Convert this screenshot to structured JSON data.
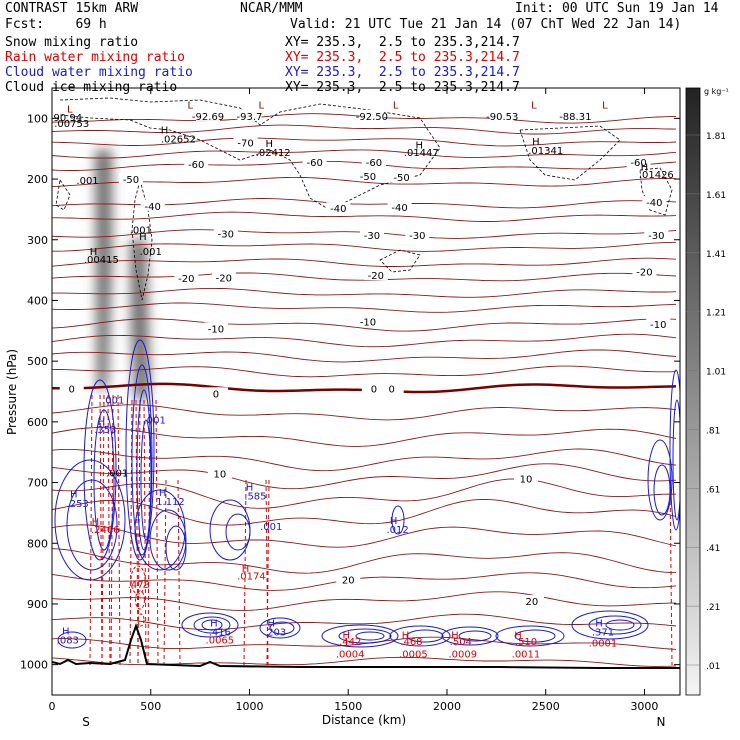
{
  "header": {
    "line1_left": "CONTRAST 15km ARW",
    "line1_center": "NCAR/MMM",
    "line1_right": "Init: 00 UTC Sun 19 Jan 14",
    "line2_left": "Fcst:    69 h",
    "line2_right": "Valid: 21 UTC Tue 21 Jan 14 (07 ChT Wed 22 Jan 14)",
    "fields": [
      {
        "name": "Snow mixing ratio",
        "xy": "XY= 235.3,  2.5 to 235.3,214.7",
        "color": "#000000"
      },
      {
        "name": "Rain water mixing ratio",
        "xy": "XY= 235.3,  2.5 to 235.3,214.7",
        "color": "#e00000"
      },
      {
        "name": "Cloud water mixing ratio",
        "xy": "XY= 235.3,  2.5 to 235.3,214.7",
        "color": "#1a1ad0"
      },
      {
        "name": "Cloud ice mixing ratio",
        "xy": "XY= 235.3,  2.5 to 235.3,214.7",
        "color": "#000000"
      }
    ]
  },
  "chart_data": {
    "type": "contour cross-section",
    "xlabel": "Distance (km)",
    "ylabel": "Pressure (hPa)",
    "xlim": [
      0,
      3180
    ],
    "ylim": [
      1050,
      50
    ],
    "x_ticks": [
      "0",
      "500",
      "1000",
      "1500",
      "2000",
      "2500",
      "3000"
    ],
    "x_tick_values": [
      0,
      500,
      1000,
      1500,
      2000,
      2500,
      3000
    ],
    "y_ticks": [
      "100",
      "200",
      "300",
      "400",
      "500",
      "600",
      "700",
      "800",
      "900",
      "1000"
    ],
    "y_tick_values": [
      100,
      200,
      300,
      400,
      500,
      600,
      700,
      800,
      900,
      1000
    ],
    "end_labels": {
      "left": "S",
      "right": "N"
    },
    "colorbar": {
      "unit": "g kg⁻¹",
      "labels": [
        "1.81",
        "1.61",
        "1.41",
        "1.21",
        "1.01",
        ".81",
        ".61",
        ".41",
        ".21",
        ".01"
      ],
      "values": [
        1.81,
        1.61,
        1.41,
        1.21,
        1.01,
        0.81,
        0.61,
        0.41,
        0.21,
        0.01
      ]
    },
    "temperature_labels": [
      {
        "text": "-92.69",
        "x": 790,
        "p": 96
      },
      {
        "text": "-93.7",
        "x": 1000,
        "p": 96
      },
      {
        "text": "-92.50",
        "x": 1620,
        "p": 96
      },
      {
        "text": "-90.53",
        "x": 2280,
        "p": 96
      },
      {
        "text": "-88.31",
        "x": 2650,
        "p": 96
      },
      {
        "text": "-70",
        "x": 980,
        "p": 140
      },
      {
        "text": "-60",
        "x": 730,
        "p": 175
      },
      {
        "text": "-60",
        "x": 1330,
        "p": 172
      },
      {
        "text": "-60",
        "x": 1630,
        "p": 172
      },
      {
        "text": "-60",
        "x": 2970,
        "p": 172
      },
      {
        "text": "-50",
        "x": 400,
        "p": 200
      },
      {
        "text": "-50",
        "x": 1600,
        "p": 195
      },
      {
        "text": "-50",
        "x": 1770,
        "p": 197
      },
      {
        "text": "-40",
        "x": 510,
        "p": 244
      },
      {
        "text": "-40",
        "x": 1450,
        "p": 248
      },
      {
        "text": "-40",
        "x": 1760,
        "p": 246
      },
      {
        "text": "-40",
        "x": 3050,
        "p": 238
      },
      {
        "text": "-30",
        "x": 880,
        "p": 290
      },
      {
        "text": "-30",
        "x": 1620,
        "p": 292
      },
      {
        "text": "-30",
        "x": 1850,
        "p": 292
      },
      {
        "text": "-30",
        "x": 3060,
        "p": 292
      },
      {
        "text": "-20",
        "x": 680,
        "p": 363
      },
      {
        "text": "-20",
        "x": 870,
        "p": 362
      },
      {
        "text": "-20",
        "x": 1640,
        "p": 358
      },
      {
        "text": "-20",
        "x": 3000,
        "p": 352
      },
      {
        "text": "-10",
        "x": 830,
        "p": 446
      },
      {
        "text": "-10",
        "x": 1600,
        "p": 435
      },
      {
        "text": "-10",
        "x": 3070,
        "p": 439
      },
      {
        "text": "0",
        "x": 100,
        "p": 545
      },
      {
        "text": "0",
        "x": 1630,
        "p": 545
      },
      {
        "text": "0",
        "x": 1720,
        "p": 545
      },
      {
        "text": "0",
        "x": 830,
        "p": 553
      },
      {
        "text": "10",
        "x": 850,
        "p": 685
      },
      {
        "text": "10",
        "x": 2400,
        "p": 693
      },
      {
        "text": "20",
        "x": 1500,
        "p": 860
      },
      {
        "text": "20",
        "x": 2430,
        "p": 895
      }
    ],
    "extrema": [
      {
        "text": "L",
        "x": 90,
        "p": 90,
        "color": "#8b0000"
      },
      {
        "text": "90.94",
        "x": 80,
        "p": 104,
        "color": "#000000"
      },
      {
        "text": ".00753",
        "x": 100,
        "p": 114,
        "color": "#000000"
      },
      {
        "text": "L",
        "x": 700,
        "p": 84,
        "color": "#8b0000"
      },
      {
        "text": "L",
        "x": 1060,
        "p": 84,
        "color": "#8b0000"
      },
      {
        "text": "L",
        "x": 1740,
        "p": 84,
        "color": "#8b0000"
      },
      {
        "text": "L",
        "x": 2440,
        "p": 84,
        "color": "#8b0000"
      },
      {
        "text": "L",
        "x": 2800,
        "p": 84,
        "color": "#8b0000"
      },
      {
        "text": "H",
        "x": 570,
        "p": 125,
        "color": "#000000"
      },
      {
        "text": ".02652",
        "x": 640,
        "p": 140,
        "color": "#000000"
      },
      {
        "text": "H",
        "x": 1100,
        "p": 147,
        "color": "#000000"
      },
      {
        "text": ".02412",
        "x": 1120,
        "p": 162,
        "color": "#000000"
      },
      {
        "text": "H",
        "x": 1860,
        "p": 150,
        "color": "#000000"
      },
      {
        "text": ".01447",
        "x": 1870,
        "p": 162,
        "color": "#000000"
      },
      {
        "text": "H",
        "x": 2450,
        "p": 144,
        "color": "#000000"
      },
      {
        "text": ".01341",
        "x": 2500,
        "p": 159,
        "color": "#000000"
      },
      {
        "text": "H",
        "x": 3000,
        "p": 186,
        "color": "#000000"
      },
      {
        "text": ".01426",
        "x": 3060,
        "p": 198,
        "color": "#000000"
      },
      {
        "text": ".001",
        "x": 180,
        "p": 208,
        "color": "#000000"
      },
      {
        "text": ".001",
        "x": 450,
        "p": 290,
        "color": "#000000"
      },
      {
        "text": "H",
        "x": 460,
        "p": 300,
        "color": "#000000"
      },
      {
        "text": ".001",
        "x": 500,
        "p": 325,
        "color": "#000000"
      },
      {
        "text": "H",
        "x": 210,
        "p": 325,
        "color": "#000000"
      },
      {
        "text": ".00415",
        "x": 250,
        "p": 338,
        "color": "#000000"
      },
      {
        "text": ".001",
        "x": 310,
        "p": 570,
        "color": "#1a1ad0"
      },
      {
        "text": "H",
        "x": 250,
        "p": 605,
        "color": "#1a1ad0"
      },
      {
        "text": ".353",
        "x": 270,
        "p": 618,
        "color": "#1a1ad0"
      },
      {
        "text": ".001",
        "x": 520,
        "p": 603,
        "color": "#1a1ad0"
      },
      {
        "text": ".001",
        "x": 330,
        "p": 690,
        "color": "#000000"
      },
      {
        "text": "H",
        "x": 110,
        "p": 725,
        "color": "#1a1ad0"
      },
      {
        "text": ".253",
        "x": 130,
        "p": 740,
        "color": "#1a1ad0"
      },
      {
        "text": "H",
        "x": 560,
        "p": 722,
        "color": "#1a1ad0"
      },
      {
        "text": "1.112",
        "x": 600,
        "p": 737,
        "color": "#1a1ad0"
      },
      {
        "text": "H",
        "x": 1000,
        "p": 713,
        "color": "#1a1ad0"
      },
      {
        "text": ".585",
        "x": 1030,
        "p": 728,
        "color": "#1a1ad0"
      },
      {
        "text": ".001",
        "x": 1110,
        "p": 778,
        "color": "#1a1ad0"
      },
      {
        "text": "H",
        "x": 1730,
        "p": 768,
        "color": "#1a1ad0"
      },
      {
        "text": ".012",
        "x": 1750,
        "p": 783,
        "color": "#1a1ad0"
      },
      {
        "text": "H",
        "x": 220,
        "p": 770,
        "color": "#e00000"
      },
      {
        "text": ".2406",
        "x": 270,
        "p": 783,
        "color": "#e00000"
      },
      {
        "text": ".473",
        "x": 440,
        "p": 874,
        "color": "#e00000"
      },
      {
        "text": "H",
        "x": 980,
        "p": 847,
        "color": "#e00000"
      },
      {
        "text": ".0174",
        "x": 1010,
        "p": 860,
        "color": "#e00000"
      },
      {
        "text": "H",
        "x": 70,
        "p": 950,
        "color": "#1a1ad0"
      },
      {
        "text": ".083",
        "x": 80,
        "p": 965,
        "color": "#1a1ad0"
      },
      {
        "text": "H",
        "x": 820,
        "p": 937,
        "color": "#1a1ad0"
      },
      {
        "text": ".416",
        "x": 850,
        "p": 952,
        "color": "#1a1ad0"
      },
      {
        "text": ".0065",
        "x": 850,
        "p": 965,
        "color": "#e00000"
      },
      {
        "text": "H",
        "x": 1110,
        "p": 937,
        "color": "#1a1ad0"
      },
      {
        "text": ".203",
        "x": 1130,
        "p": 952,
        "color": "#1a1ad0"
      },
      {
        "text": "H",
        "x": 1490,
        "p": 957,
        "color": "#e00000"
      },
      {
        "text": ".442",
        "x": 1510,
        "p": 968,
        "color": "#e00000"
      },
      {
        "text": ".0004",
        "x": 1510,
        "p": 988,
        "color": "#e00000"
      },
      {
        "text": "H",
        "x": 1790,
        "p": 957,
        "color": "#e00000"
      },
      {
        "text": ".468",
        "x": 1820,
        "p": 968,
        "color": "#e00000"
      },
      {
        "text": ".0005",
        "x": 1830,
        "p": 988,
        "color": "#e00000"
      },
      {
        "text": "H",
        "x": 2040,
        "p": 957,
        "color": "#e00000"
      },
      {
        "text": ".504",
        "x": 2070,
        "p": 968,
        "color": "#e00000"
      },
      {
        "text": ".0009",
        "x": 2080,
        "p": 988,
        "color": "#e00000"
      },
      {
        "text": "H",
        "x": 2360,
        "p": 957,
        "color": "#e00000"
      },
      {
        "text": ".510",
        "x": 2400,
        "p": 968,
        "color": "#e00000"
      },
      {
        "text": ".0011",
        "x": 2400,
        "p": 988,
        "color": "#e00000"
      },
      {
        "text": "H",
        "x": 2770,
        "p": 937,
        "color": "#1a1ad0"
      },
      {
        "text": ".371",
        "x": 2790,
        "p": 952,
        "color": "#1a1ad0"
      },
      {
        "text": ".0001",
        "x": 2790,
        "p": 970,
        "color": "#e00000"
      }
    ]
  }
}
